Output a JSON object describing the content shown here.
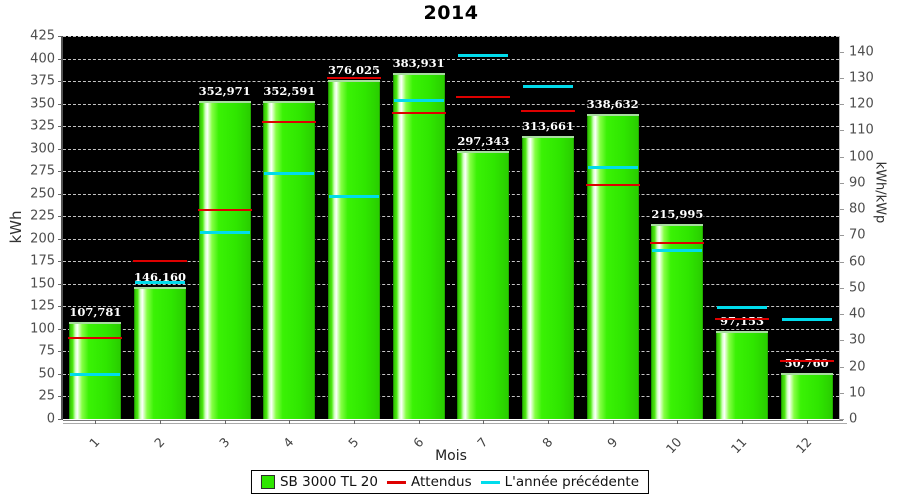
{
  "accent_colors": {
    "bar_green": "#2fe600",
    "attendus_red": "#de0000",
    "precedente_cyan": "#00dcec",
    "plot_background": "#000000"
  },
  "chart_data": {
    "type": "bar",
    "title": "2014",
    "xlabel": "Mois",
    "ylabel_left": "kWh",
    "ylabel_right": "kWh/kWp",
    "grid": "dashed-horizontal",
    "legend_position": "bottom-center",
    "left_axis": {
      "min": 0,
      "max": 425,
      "step": 25
    },
    "right_axis": {
      "min": 0,
      "max": 140,
      "step": 10,
      "scale_top_value": 146
    },
    "categories": [
      "1",
      "2",
      "3",
      "4",
      "5",
      "6",
      "7",
      "8",
      "9",
      "10",
      "11",
      "12"
    ],
    "series": [
      {
        "name": "SB 3000 TL 20",
        "type": "bar",
        "color": "#2fe600",
        "values": [
          107.781,
          146.16,
          352.971,
          352.591,
          376.025,
          383.931,
          297.343,
          313.661,
          338.632,
          215.995,
          97.153,
          50.76
        ],
        "labels": [
          "107,781",
          "146,160",
          "352,971",
          "352,591",
          "376,025",
          "383,931",
          "297,343",
          "313,661",
          "338,632",
          "215,995",
          "97,153",
          "50,760"
        ]
      },
      {
        "name": "Attendus",
        "type": "tick-line",
        "color": "#de0000",
        "values": [
          90,
          175,
          232,
          330,
          378,
          340,
          357,
          342,
          260,
          195,
          111,
          64
        ]
      },
      {
        "name": "L'année précédente",
        "type": "tick-line",
        "color": "#00dcec",
        "values": [
          50,
          152,
          207,
          273,
          247,
          354,
          404,
          369,
          280,
          187,
          124,
          111
        ]
      }
    ]
  },
  "legend": {
    "item1": "SB 3000 TL 20",
    "item2": "Attendus",
    "item3": "L'année précédente"
  }
}
